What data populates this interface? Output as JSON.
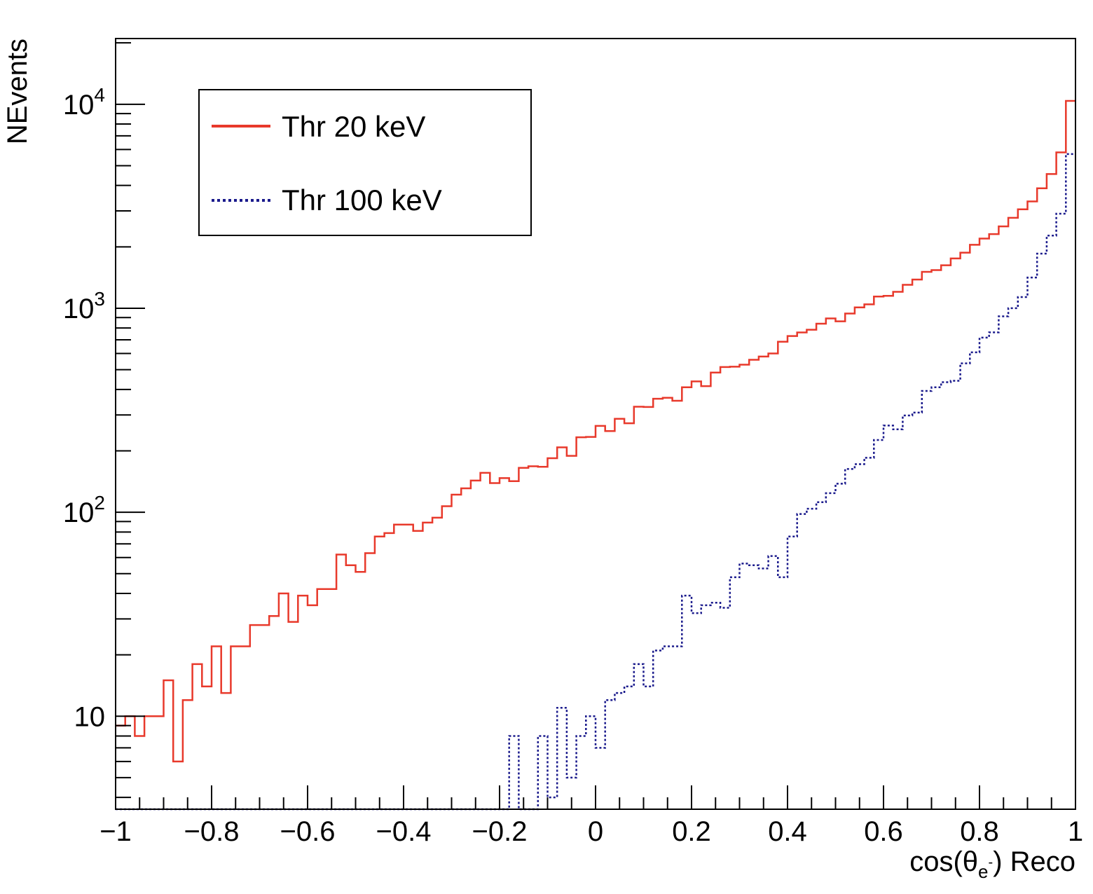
{
  "chart_data": {
    "type": "histogram",
    "title": "",
    "xlabel": {
      "main": "cos(θ",
      "sub": "e",
      "sup": "-",
      "tail": ") Reco"
    },
    "ylabel": "NEvents",
    "xlim": [
      -1,
      1
    ],
    "ylim": [
      3.5,
      21000
    ],
    "y_scale": "log",
    "x_ticks": [
      {
        "v": -1.0,
        "label": "−1"
      },
      {
        "v": -0.8,
        "label": "−0.8"
      },
      {
        "v": -0.6,
        "label": "−0.6"
      },
      {
        "v": -0.4,
        "label": "−0.4"
      },
      {
        "v": -0.2,
        "label": "−0.2"
      },
      {
        "v": 0.0,
        "label": "0"
      },
      {
        "v": 0.2,
        "label": "0.2"
      },
      {
        "v": 0.4,
        "label": "0.4"
      },
      {
        "v": 0.6,
        "label": "0.6"
      },
      {
        "v": 0.8,
        "label": "0.8"
      },
      {
        "v": 1.0,
        "label": "1"
      }
    ],
    "y_ticks": [
      {
        "v": 10,
        "base": "10",
        "exp": ""
      },
      {
        "v": 100,
        "base": "10",
        "exp": "2"
      },
      {
        "v": 1000,
        "base": "10",
        "exp": "3"
      },
      {
        "v": 10000,
        "base": "10",
        "exp": "4"
      }
    ],
    "bin_edges_range": [
      -1,
      1
    ],
    "n_bins": 100,
    "legend": {
      "placement": "top-left",
      "entries": [
        {
          "label": "Thr 20 keV",
          "style": "solid",
          "color": "#e8392b"
        },
        {
          "label": "Thr 100 keV",
          "style": "dotted",
          "color": "#1a1a8c"
        }
      ]
    },
    "series": [
      {
        "name": "Thr 20 keV",
        "color": "#e8392b",
        "style": "solid",
        "values": [
          9,
          10,
          8,
          10,
          10,
          15,
          6,
          12,
          18,
          14,
          22,
          13,
          22,
          22,
          28,
          28,
          31,
          40,
          29,
          39,
          35,
          42,
          42,
          62,
          55,
          51,
          63,
          76,
          79,
          87,
          87,
          81,
          89,
          94,
          107,
          122,
          131,
          143,
          156,
          139,
          147,
          142,
          165,
          168,
          167,
          184,
          208,
          189,
          233,
          234,
          265,
          250,
          287,
          273,
          329,
          328,
          360,
          364,
          352,
          410,
          438,
          415,
          484,
          515,
          517,
          529,
          559,
          580,
          600,
          685,
          731,
          761,
          785,
          840,
          891,
          863,
          942,
          1010,
          1045,
          1141,
          1150,
          1204,
          1303,
          1382,
          1509,
          1539,
          1625,
          1754,
          1873,
          2047,
          2196,
          2310,
          2519,
          2776,
          3055,
          3341,
          3872,
          4549,
          5809,
          10390
        ]
      },
      {
        "name": "Thr 100 keV",
        "color": "#1a1a8c",
        "style": "dotted",
        "values": [
          0,
          0,
          0,
          0,
          0,
          0,
          0,
          0,
          0,
          0,
          0,
          0,
          0,
          0,
          0,
          0,
          0,
          0,
          0,
          0,
          0,
          0,
          0,
          0,
          0,
          0,
          0,
          0,
          0,
          0,
          0,
          0,
          0,
          0,
          0,
          0,
          0,
          0,
          0,
          0,
          0,
          8,
          0,
          0,
          8,
          4,
          11,
          5,
          8,
          10,
          7,
          12,
          13,
          14,
          18,
          14,
          21,
          22,
          22,
          39,
          32,
          35,
          36,
          34,
          48,
          56,
          55,
          53,
          61,
          48,
          76,
          98,
          104,
          112,
          124,
          138,
          163,
          172,
          185,
          226,
          266,
          255,
          298,
          308,
          393,
          410,
          434,
          441,
          537,
          608,
          718,
          762,
          913,
          1001,
          1135,
          1414,
          1852,
          2270,
          2908,
          5700
        ]
      }
    ]
  }
}
